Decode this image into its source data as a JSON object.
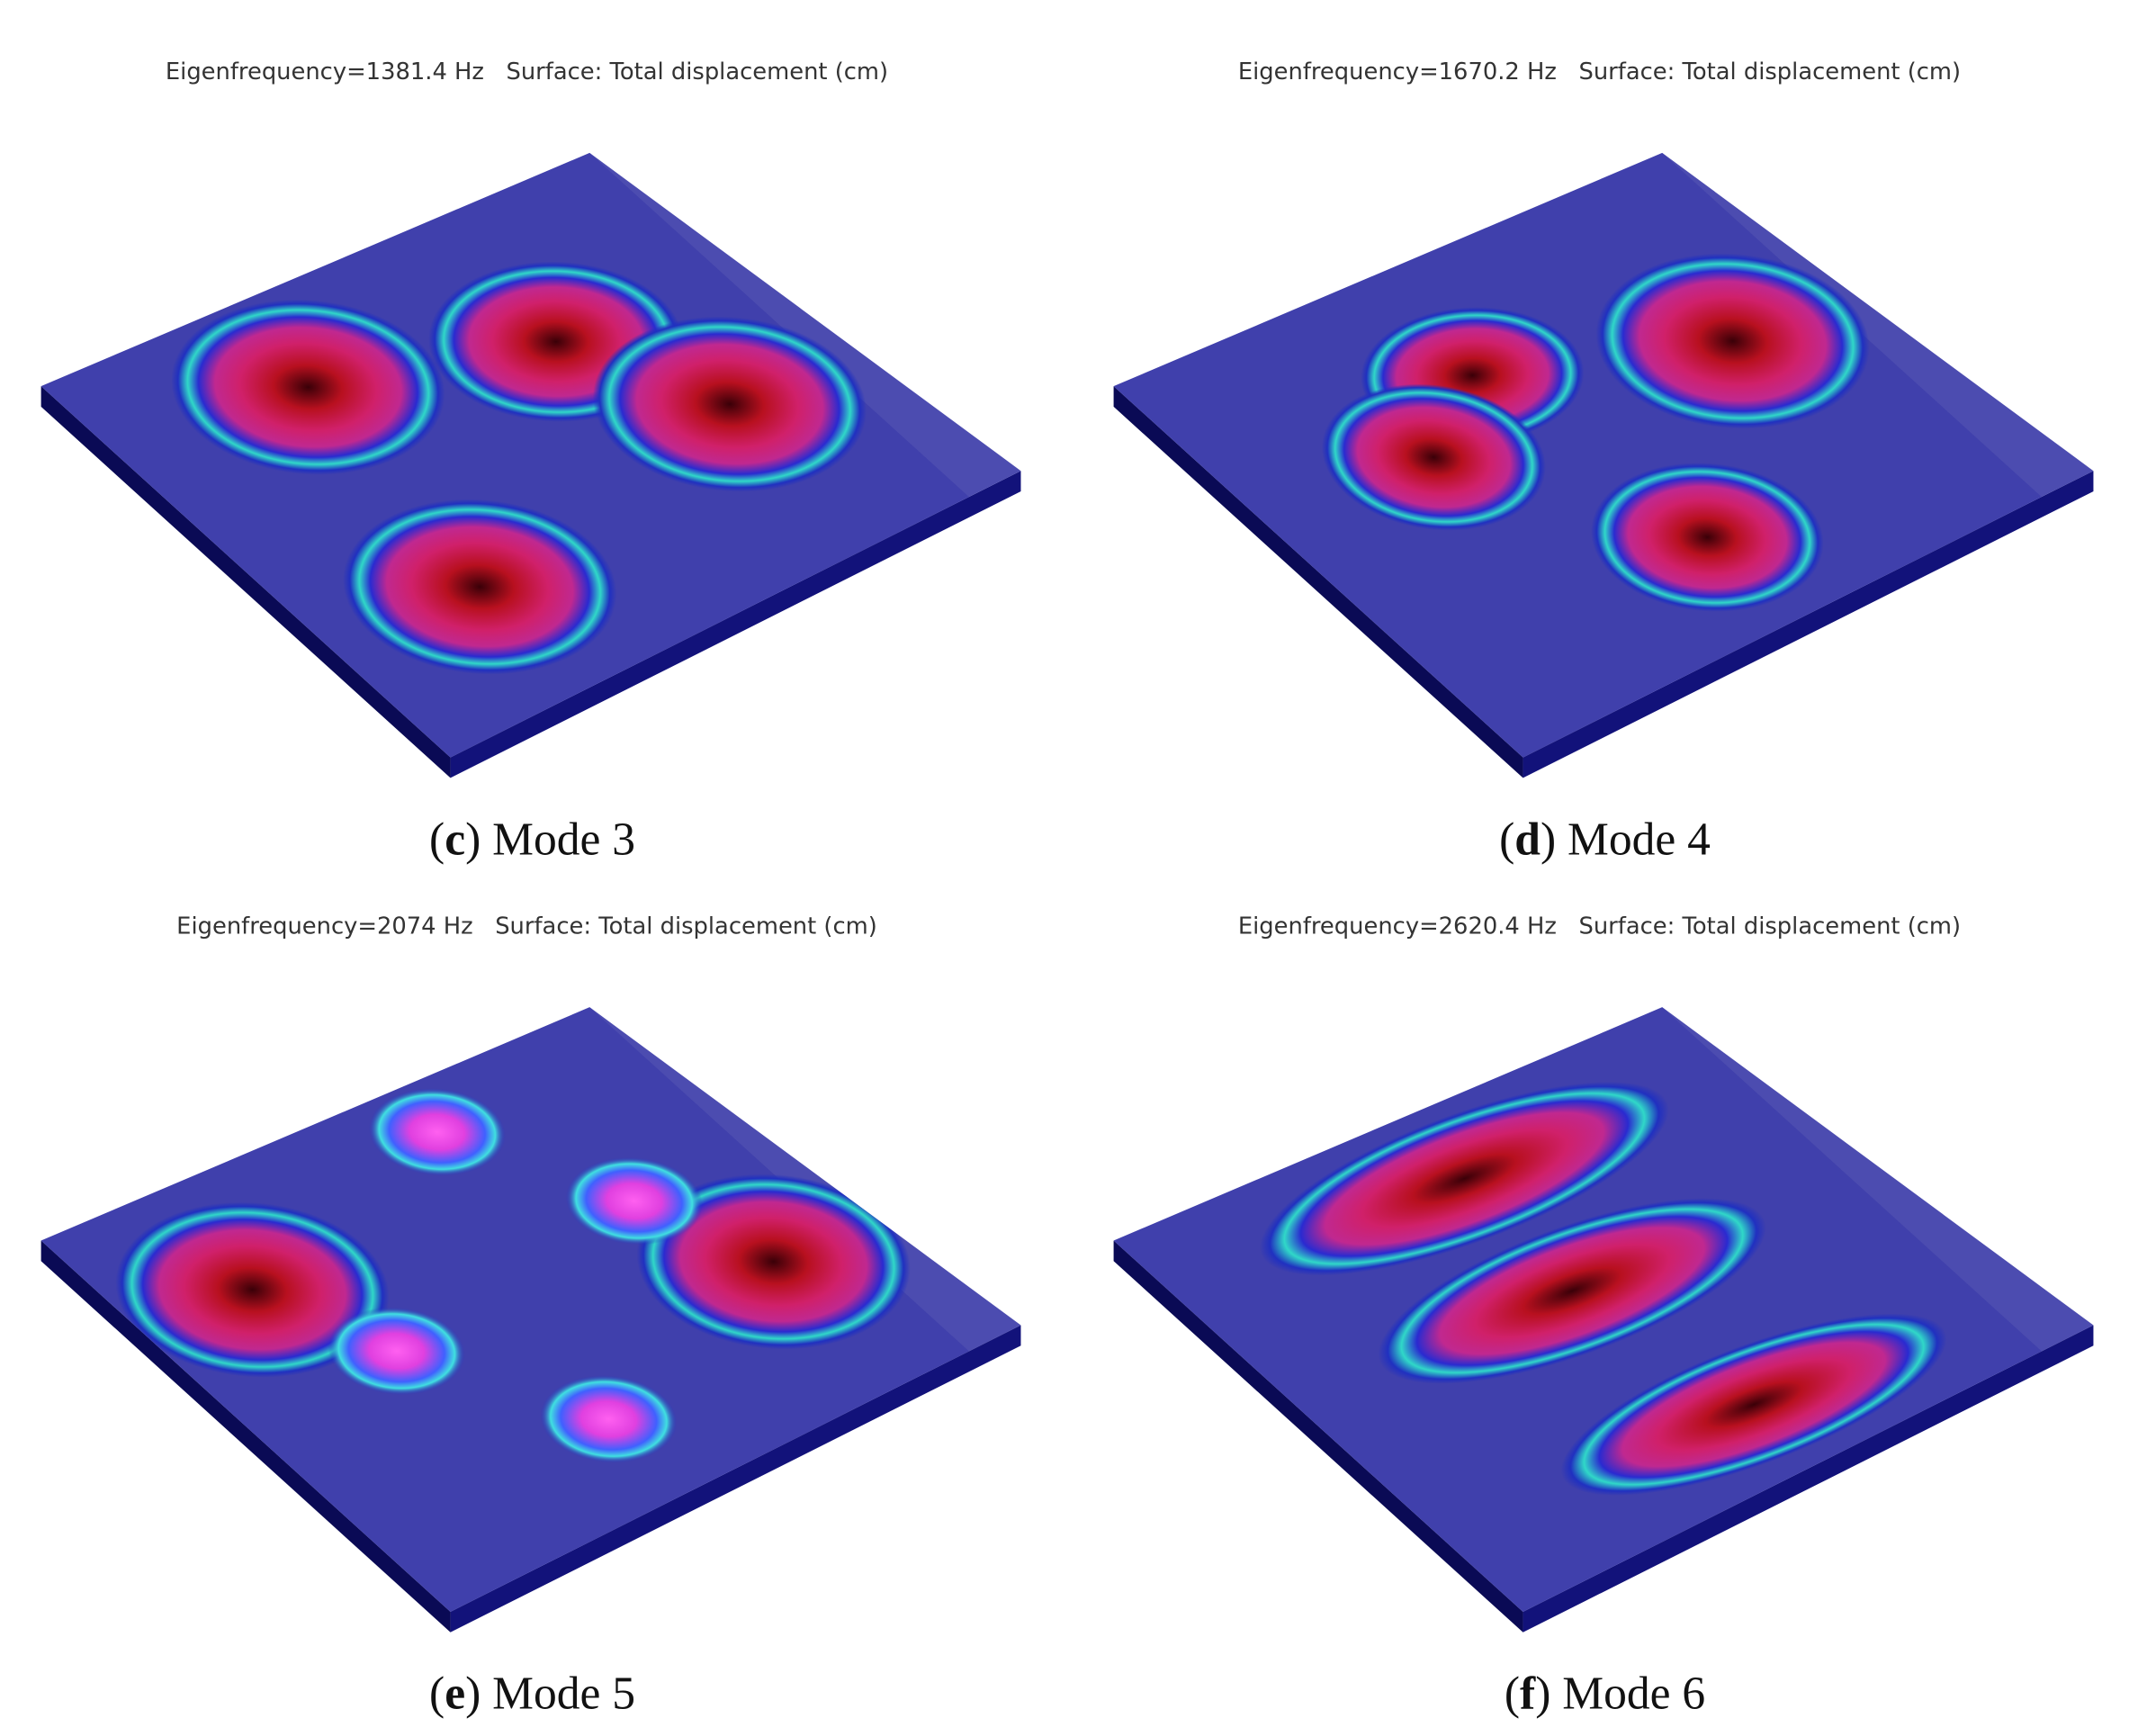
{
  "panels": [
    {
      "header": "Eigenfrequency=1381.4 Hz   Surface: Total displacement (cm)",
      "caption": [
        "(",
        "c",
        ") Mode 3"
      ]
    },
    {
      "header": "Eigenfrequency=1670.2 Hz   Surface: Total displacement (cm)",
      "caption": [
        "(",
        "d",
        ") Mode 4"
      ]
    },
    {
      "header": "Eigenfrequency=2074 Hz   Surface: Total displacement (cm)",
      "caption": [
        "(",
        "e",
        ") Mode 5"
      ]
    },
    {
      "header": "Eigenfrequency=2620.4 Hz   Surface: Total displacement (cm)",
      "caption": [
        "(",
        "f",
        ") Mode 6"
      ]
    }
  ]
}
